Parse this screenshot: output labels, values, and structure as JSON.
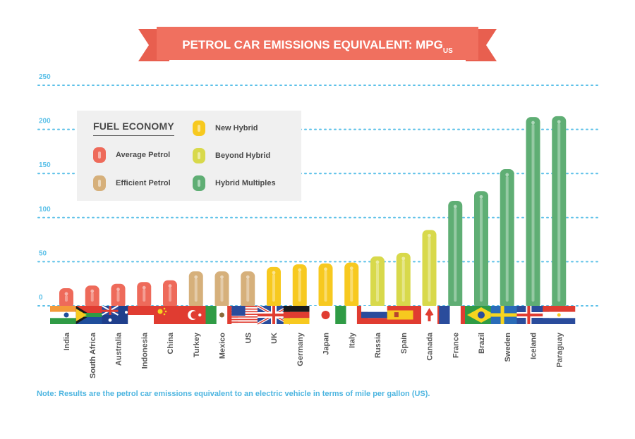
{
  "title": {
    "main": "PETROL CAR EMISSIONS EQUIVALENT: MPG",
    "sub": "US"
  },
  "legend": {
    "title": "FUEL ECONOMY",
    "items": [
      {
        "label": "Average Petrol",
        "color": "#ee6a5a"
      },
      {
        "label": "Efficient Petrol",
        "color": "#d6b07b"
      },
      {
        "label": "New Hybrid",
        "color": "#f7c91f"
      },
      {
        "label": "Beyond Hybrid",
        "color": "#d8d94b"
      },
      {
        "label": "Hybrid Multiples",
        "color": "#5fae74"
      }
    ]
  },
  "note": "Note: Results are the petrol car emissions equivalent to an electric vehicle in terms of mile per gallon (US).",
  "chart_data": {
    "type": "bar",
    "title": "PETROL CAR EMISSIONS EQUIVALENT: MPG US",
    "xlabel": "",
    "ylabel": "",
    "ylim": [
      0,
      250
    ],
    "yticks": [
      "0",
      "50",
      "100",
      "150",
      "200",
      "250"
    ],
    "categories": [
      "India",
      "South Africa",
      "Australia",
      "Indonesia",
      "China",
      "Turkey",
      "Mexico",
      "US",
      "UK",
      "Germany",
      "Japan",
      "Italy",
      "Russia",
      "Spain",
      "Canada",
      "France",
      "Brazil",
      "Sweden",
      "Iceland",
      "Paraguay"
    ],
    "values": [
      20,
      23,
      25,
      27,
      29,
      39,
      39,
      39,
      44,
      47,
      48,
      49,
      56,
      60,
      86,
      119,
      130,
      155,
      214,
      215
    ],
    "categories_group": [
      "Average Petrol",
      "Average Petrol",
      "Average Petrol",
      "Average Petrol",
      "Average Petrol",
      "Efficient Petrol",
      "Efficient Petrol",
      "Efficient Petrol",
      "New Hybrid",
      "New Hybrid",
      "New Hybrid",
      "New Hybrid",
      "Beyond Hybrid",
      "Beyond Hybrid",
      "Beyond Hybrid",
      "Hybrid Multiples",
      "Hybrid Multiples",
      "Hybrid Multiples",
      "Hybrid Multiples",
      "Hybrid Multiples"
    ],
    "grid": true
  }
}
